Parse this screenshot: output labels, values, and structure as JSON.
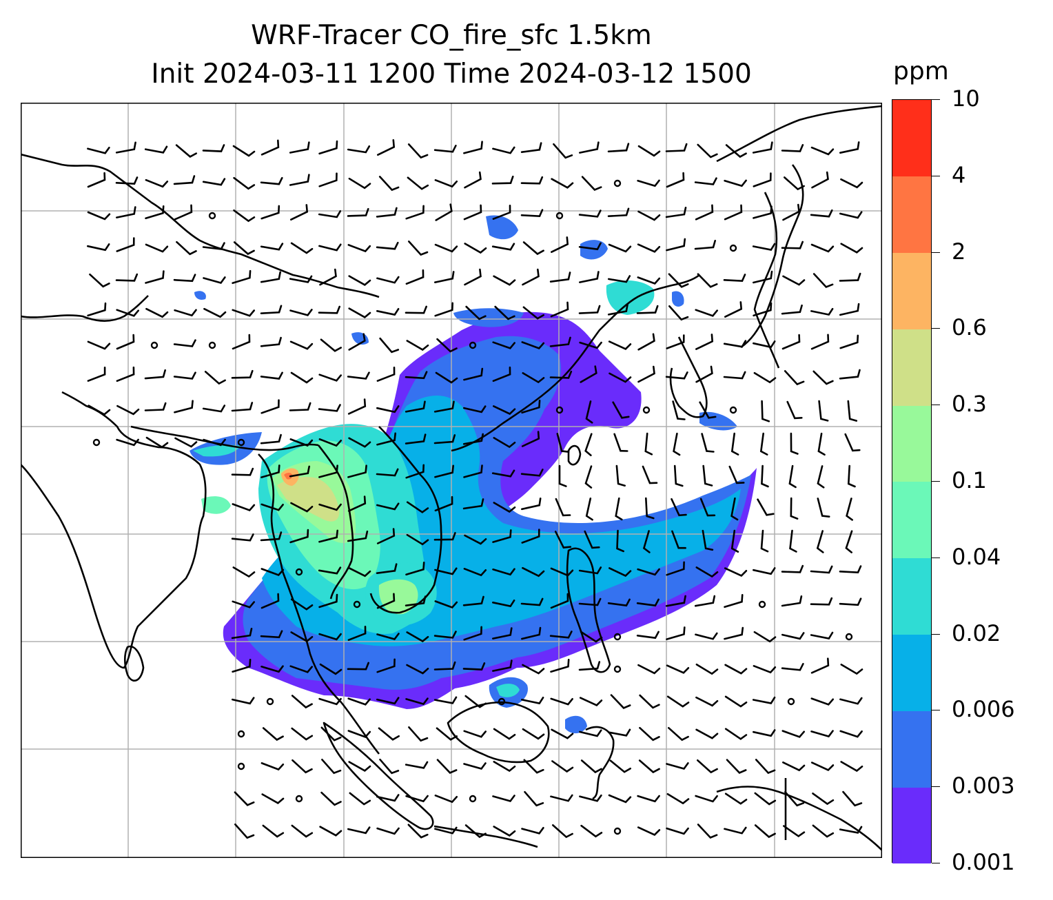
{
  "title": {
    "line1": "WRF-Tracer CO_fire_sfc 1.5km",
    "line2": "Init 2024-03-11 1200 Time 2024-03-12 1500"
  },
  "colorbar": {
    "unit": "ppm",
    "levels": [
      "0.001",
      "0.003",
      "0.006",
      "0.02",
      "0.04",
      "0.1",
      "0.3",
      "0.6",
      "2",
      "4",
      "10"
    ],
    "colors": [
      "#6a2cfb",
      "#3572f0",
      "#07b0e8",
      "#2fdcd4",
      "#6bf8b8",
      "#98f99a",
      "#cfe088",
      "#fdb462",
      "#ff7542",
      "#ff2f1a"
    ]
  },
  "map": {
    "grid": true,
    "coastline_color": "#000000",
    "grid_color": "#b0b0b0",
    "wind_barb_color": "#000000"
  }
}
